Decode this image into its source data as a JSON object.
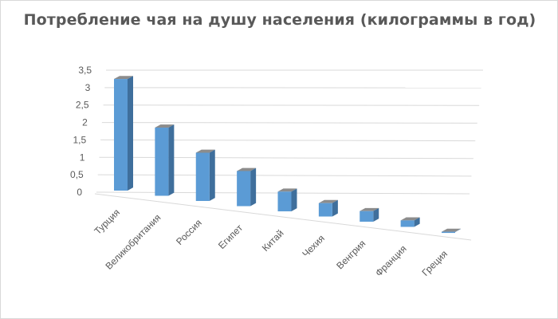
{
  "chart_data": {
    "type": "bar",
    "style": "3d-column",
    "title": "Потребление чая на душу населения (килограммы в год)",
    "categories": [
      "Турция",
      "Великобритания",
      "Россия",
      "Египет",
      "Китай",
      "Чехия",
      "Венгрия",
      "Франция",
      "Греция"
    ],
    "values": [
      3.16,
      1.94,
      1.38,
      1.01,
      0.57,
      0.39,
      0.31,
      0.19,
      0.01
    ],
    "ylim": [
      0,
      3.5
    ],
    "yticks": [
      "0",
      "0,5",
      "1",
      "1,5",
      "2",
      "2,5",
      "3",
      "3,5"
    ],
    "grid": true,
    "legend": "none",
    "colors": {
      "bar_front": "#5b9bd5",
      "bar_side": "#3f6f9c",
      "bar_top": "#8c8c8c",
      "grid": "#d9d9d9",
      "text": "#595959"
    }
  }
}
